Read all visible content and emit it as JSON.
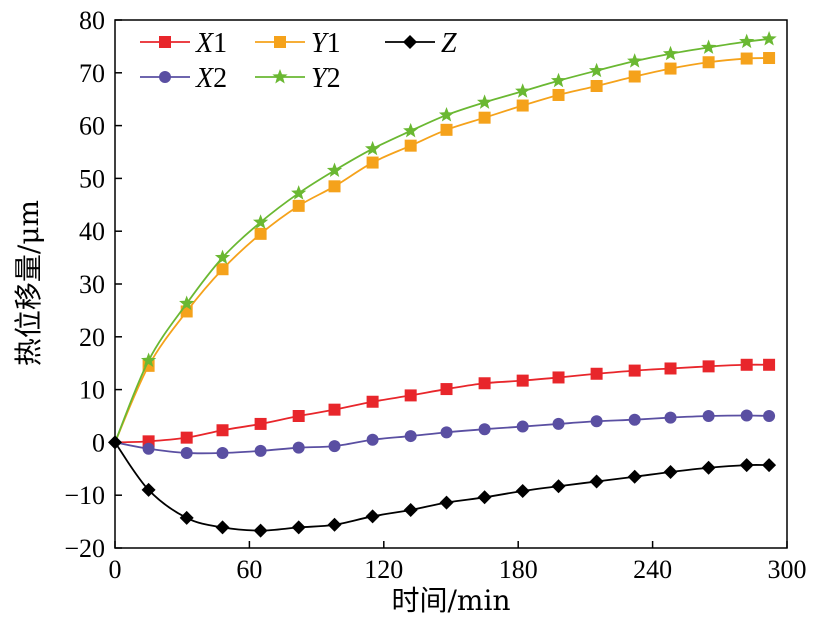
{
  "chart_data": {
    "type": "line",
    "title": "",
    "xlabel": "时间/min",
    "ylabel": "热位移量/μm",
    "xlim": [
      0,
      300
    ],
    "ylim": [
      -20,
      80
    ],
    "xticks": [
      0,
      60,
      120,
      180,
      240,
      300
    ],
    "yticks": [
      -20,
      -10,
      0,
      10,
      20,
      30,
      40,
      50,
      60,
      70,
      80
    ],
    "grid": false,
    "legend_position": "top-left",
    "series": [
      {
        "name": "X1",
        "label_letter": "X",
        "label_digit": "1",
        "color": "#e8262b",
        "marker": "square",
        "x": [
          0,
          15,
          32,
          48,
          65,
          82,
          98,
          115,
          132,
          148,
          165,
          182,
          198,
          215,
          232,
          248,
          265,
          282,
          292
        ],
        "y": [
          0,
          0.2,
          0.9,
          2.3,
          3.5,
          5.0,
          6.2,
          7.7,
          8.9,
          10.1,
          11.2,
          11.7,
          12.3,
          13.0,
          13.6,
          14.0,
          14.4,
          14.7,
          14.7
        ]
      },
      {
        "name": "X2",
        "label_letter": "X",
        "label_digit": "2",
        "color": "#5a4fa2",
        "marker": "circle",
        "x": [
          0,
          15,
          32,
          48,
          65,
          82,
          98,
          115,
          132,
          148,
          165,
          182,
          198,
          215,
          232,
          248,
          265,
          282,
          292
        ],
        "y": [
          0,
          -1.2,
          -2.0,
          -2.0,
          -1.6,
          -1.0,
          -0.7,
          0.5,
          1.2,
          1.9,
          2.5,
          3.0,
          3.5,
          4.0,
          4.3,
          4.7,
          5.0,
          5.1,
          5.0
        ]
      },
      {
        "name": "Y1",
        "label_letter": "Y",
        "label_digit": "1",
        "color": "#f5a21b",
        "marker": "square",
        "x": [
          0,
          15,
          32,
          48,
          65,
          82,
          98,
          115,
          132,
          148,
          165,
          182,
          198,
          215,
          232,
          248,
          265,
          282,
          292
        ],
        "y": [
          0,
          14.5,
          24.8,
          32.8,
          39.5,
          44.8,
          48.5,
          53.0,
          56.2,
          59.2,
          61.5,
          63.8,
          65.8,
          67.5,
          69.3,
          70.8,
          72.0,
          72.7,
          72.8
        ]
      },
      {
        "name": "Y2",
        "label_letter": "Y",
        "label_digit": "2",
        "color": "#6ab832",
        "marker": "star",
        "x": [
          0,
          15,
          32,
          48,
          65,
          82,
          98,
          115,
          132,
          148,
          165,
          182,
          198,
          215,
          232,
          248,
          265,
          282,
          292
        ],
        "y": [
          0,
          15.5,
          26.3,
          35.0,
          41.7,
          47.2,
          51.5,
          55.6,
          59.0,
          62.0,
          64.4,
          66.5,
          68.5,
          70.4,
          72.2,
          73.6,
          74.8,
          75.9,
          76.4
        ]
      },
      {
        "name": "Z",
        "label_letter": "Z",
        "label_digit": "",
        "color": "#000000",
        "marker": "diamond",
        "x": [
          0,
          15,
          32,
          48,
          65,
          82,
          98,
          115,
          132,
          148,
          165,
          182,
          198,
          215,
          232,
          248,
          265,
          282,
          292
        ],
        "y": [
          0,
          -9.0,
          -14.3,
          -16.1,
          -16.7,
          -16.1,
          -15.6,
          -14.0,
          -12.8,
          -11.4,
          -10.4,
          -9.2,
          -8.3,
          -7.4,
          -6.5,
          -5.6,
          -4.8,
          -4.3,
          -4.3
        ]
      }
    ]
  }
}
